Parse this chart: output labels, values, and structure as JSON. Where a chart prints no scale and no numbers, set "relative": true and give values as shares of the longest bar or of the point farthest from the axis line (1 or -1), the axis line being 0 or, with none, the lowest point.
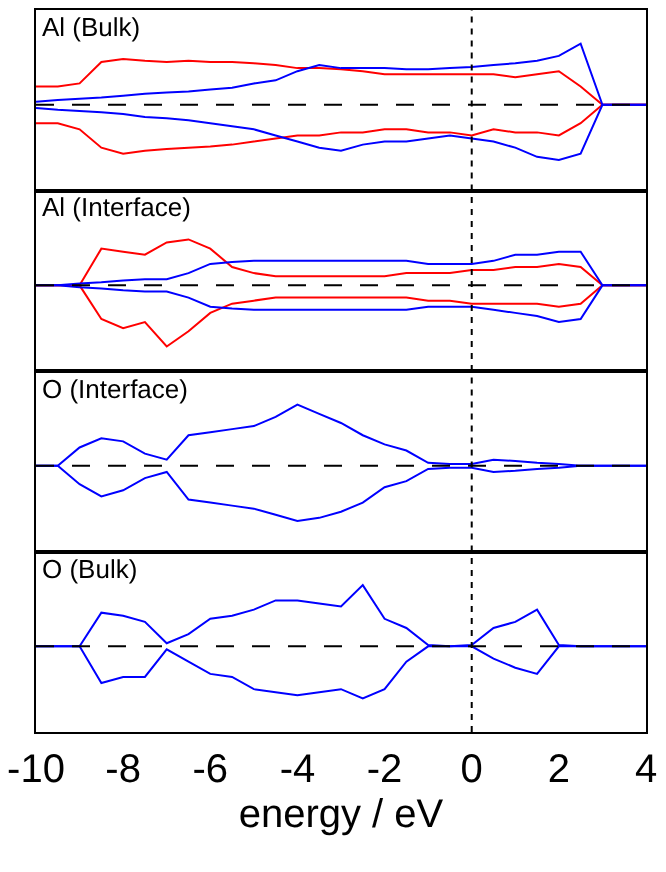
{
  "chart_data": [
    {
      "type": "line",
      "title": "Al (Bulk)",
      "relative": true,
      "xlim": [
        -10,
        4
      ],
      "tick_labels": false,
      "marker": "none",
      "grid": false,
      "x": [
        -10,
        -9.5,
        -9,
        -8.5,
        -8,
        -7.5,
        -7,
        -6.5,
        -6,
        -5.5,
        -5,
        -4.5,
        -4,
        -3.5,
        -3,
        -2.5,
        -2,
        -1.5,
        -1,
        -0.5,
        0,
        0.5,
        1,
        1.5,
        2,
        2.5,
        3,
        3.5,
        4
      ],
      "series": [
        {
          "color": "#ff0000",
          "values": [
            0.3,
            0.3,
            0.35,
            0.7,
            0.75,
            0.72,
            0.7,
            0.72,
            0.7,
            0.7,
            0.68,
            0.65,
            0.6,
            0.6,
            0.58,
            0.55,
            0.5,
            0.5,
            0.5,
            0.5,
            0.5,
            0.5,
            0.45,
            0.5,
            0.55,
            0.3,
            0,
            0,
            0
          ]
        },
        {
          "color": "#ff0000",
          "values": [
            -0.3,
            -0.3,
            -0.4,
            -0.7,
            -0.8,
            -0.75,
            -0.72,
            -0.7,
            -0.68,
            -0.65,
            -0.6,
            -0.55,
            -0.5,
            -0.5,
            -0.45,
            -0.45,
            -0.4,
            -0.4,
            -0.45,
            -0.45,
            -0.5,
            -0.4,
            -0.45,
            -0.45,
            -0.5,
            -0.3,
            0,
            0,
            0
          ]
        },
        {
          "color": "#0000ff",
          "values": [
            0.05,
            0.08,
            0.1,
            0.12,
            0.15,
            0.18,
            0.2,
            0.22,
            0.25,
            0.28,
            0.35,
            0.4,
            0.55,
            0.65,
            0.6,
            0.6,
            0.6,
            0.58,
            0.58,
            0.6,
            0.62,
            0.65,
            0.68,
            0.72,
            0.8,
            1.0,
            0,
            0,
            0
          ]
        },
        {
          "color": "#0000ff",
          "values": [
            -0.05,
            -0.08,
            -0.1,
            -0.12,
            -0.15,
            -0.2,
            -0.22,
            -0.25,
            -0.3,
            -0.35,
            -0.4,
            -0.5,
            -0.6,
            -0.7,
            -0.75,
            -0.65,
            -0.6,
            -0.6,
            -0.55,
            -0.5,
            -0.55,
            -0.6,
            -0.7,
            -0.85,
            -0.9,
            -0.8,
            0,
            0,
            0
          ]
        }
      ],
      "ref_lines": [
        {
          "axis": "y",
          "value": 0,
          "color": "#000000",
          "line_style": "dashed"
        },
        {
          "axis": "x",
          "value": 0,
          "color": "#000000",
          "line_style": "dotted"
        }
      ]
    },
    {
      "type": "line",
      "title": "Al (Interface)",
      "relative": true,
      "xlim": [
        -10,
        4
      ],
      "tick_labels": false,
      "marker": "none",
      "grid": false,
      "x": [
        -10,
        -9.5,
        -9,
        -8.5,
        -8,
        -7.5,
        -7,
        -6.5,
        -6,
        -5.5,
        -5,
        -4.5,
        -4,
        -3.5,
        -3,
        -2.5,
        -2,
        -1.5,
        -1,
        -0.5,
        0,
        0.5,
        1,
        1.5,
        2,
        2.5,
        3,
        3.5,
        4
      ],
      "series": [
        {
          "color": "#ff0000",
          "values": [
            0,
            0,
            0,
            0.6,
            0.55,
            0.5,
            0.7,
            0.75,
            0.6,
            0.3,
            0.2,
            0.15,
            0.15,
            0.15,
            0.15,
            0.15,
            0.15,
            0.2,
            0.2,
            0.2,
            0.25,
            0.25,
            0.3,
            0.3,
            0.35,
            0.3,
            0,
            0,
            0
          ]
        },
        {
          "color": "#ff0000",
          "values": [
            0,
            0,
            0,
            -0.55,
            -0.7,
            -0.6,
            -1.0,
            -0.75,
            -0.45,
            -0.3,
            -0.25,
            -0.2,
            -0.2,
            -0.2,
            -0.2,
            -0.2,
            -0.2,
            -0.2,
            -0.25,
            -0.25,
            -0.3,
            -0.3,
            -0.3,
            -0.3,
            -0.35,
            -0.3,
            0,
            0,
            0
          ]
        },
        {
          "color": "#0000ff",
          "values": [
            0,
            0,
            0.03,
            0.05,
            0.08,
            0.1,
            0.1,
            0.2,
            0.35,
            0.38,
            0.4,
            0.4,
            0.4,
            0.4,
            0.4,
            0.4,
            0.4,
            0.4,
            0.35,
            0.35,
            0.35,
            0.4,
            0.5,
            0.5,
            0.55,
            0.55,
            0,
            0,
            0
          ]
        },
        {
          "color": "#0000ff",
          "values": [
            0,
            0,
            -0.03,
            -0.05,
            -0.08,
            -0.1,
            -0.1,
            -0.2,
            -0.35,
            -0.38,
            -0.4,
            -0.4,
            -0.4,
            -0.4,
            -0.4,
            -0.4,
            -0.4,
            -0.4,
            -0.35,
            -0.35,
            -0.35,
            -0.4,
            -0.45,
            -0.5,
            -0.6,
            -0.55,
            0,
            0,
            0
          ]
        }
      ],
      "ref_lines": [
        {
          "axis": "y",
          "value": 0,
          "color": "#000000",
          "line_style": "dashed"
        },
        {
          "axis": "x",
          "value": 0,
          "color": "#000000",
          "line_style": "dotted"
        }
      ]
    },
    {
      "type": "line",
      "title": "O (Interface)",
      "relative": true,
      "xlim": [
        -10,
        4
      ],
      "tick_labels": false,
      "marker": "none",
      "grid": false,
      "x": [
        -10,
        -9.5,
        -9,
        -8.5,
        -8,
        -7.5,
        -7,
        -6.5,
        -6,
        -5.5,
        -5,
        -4.5,
        -4,
        -3.5,
        -3,
        -2.5,
        -2,
        -1.5,
        -1,
        -0.5,
        0,
        0.5,
        1,
        1.5,
        2,
        2.5,
        3,
        3.5,
        4
      ],
      "series": [
        {
          "color": "#0000ff",
          "values": [
            0,
            0,
            0.3,
            0.45,
            0.4,
            0.2,
            0.1,
            0.5,
            0.55,
            0.6,
            0.65,
            0.8,
            1.0,
            0.85,
            0.7,
            0.5,
            0.35,
            0.25,
            0.05,
            0.03,
            0.03,
            0.1,
            0.08,
            0.05,
            0.03,
            0,
            0,
            0,
            0
          ]
        },
        {
          "color": "#0000ff",
          "values": [
            0,
            0,
            -0.3,
            -0.5,
            -0.4,
            -0.2,
            -0.1,
            -0.55,
            -0.6,
            -0.65,
            -0.7,
            -0.8,
            -0.9,
            -0.85,
            -0.75,
            -0.6,
            -0.35,
            -0.25,
            -0.05,
            -0.03,
            -0.03,
            -0.1,
            -0.08,
            -0.05,
            -0.03,
            0,
            0,
            0,
            0
          ]
        }
      ],
      "ref_lines": [
        {
          "axis": "y",
          "value": 0,
          "color": "#000000",
          "line_style": "dashed"
        },
        {
          "axis": "x",
          "value": 0,
          "color": "#000000",
          "line_style": "dotted"
        }
      ]
    },
    {
      "type": "line",
      "title": "O (Bulk)",
      "relative": true,
      "xlim": [
        -10,
        4
      ],
      "xticks": [
        -10,
        -8,
        -6,
        -4,
        -2,
        0,
        2,
        4
      ],
      "xlabel": "energy / eV",
      "tick_labels": "x",
      "marker": "none",
      "grid": false,
      "x": [
        -10,
        -9.5,
        -9,
        -8.5,
        -8,
        -7.5,
        -7,
        -6.5,
        -6,
        -5.5,
        -5,
        -4.5,
        -4,
        -3.5,
        -3,
        -2.5,
        -2,
        -1.5,
        -1,
        -0.5,
        0,
        0.5,
        1,
        1.5,
        2,
        2.5,
        3,
        3.5,
        4
      ],
      "series": [
        {
          "color": "#0000ff",
          "values": [
            0,
            0,
            0,
            0.55,
            0.5,
            0.4,
            0.05,
            0.2,
            0.45,
            0.5,
            0.6,
            0.75,
            0.75,
            0.7,
            0.65,
            1.0,
            0.45,
            0.3,
            0.02,
            0,
            0.02,
            0.3,
            0.4,
            0.6,
            0.02,
            0,
            0,
            0,
            0
          ]
        },
        {
          "color": "#0000ff",
          "values": [
            0,
            0,
            0,
            -0.6,
            -0.5,
            -0.5,
            -0.05,
            -0.25,
            -0.45,
            -0.5,
            -0.7,
            -0.75,
            -0.8,
            -0.75,
            -0.7,
            -0.85,
            -0.7,
            -0.25,
            0,
            0,
            0,
            -0.2,
            -0.35,
            -0.45,
            0,
            0,
            0,
            0,
            0
          ]
        }
      ],
      "ref_lines": [
        {
          "axis": "y",
          "value": 0,
          "color": "#000000",
          "line_style": "dashed"
        },
        {
          "axis": "x",
          "value": 0,
          "color": "#000000",
          "line_style": "dotted"
        }
      ]
    }
  ]
}
